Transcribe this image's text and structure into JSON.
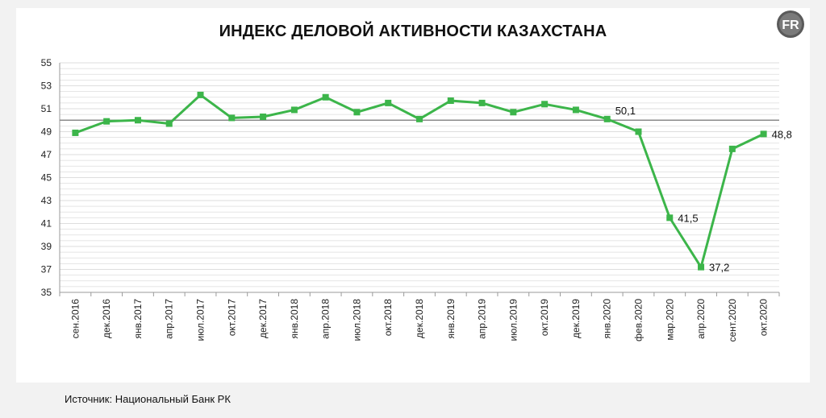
{
  "header": {
    "title": "ИНДЕКС ДЕЛОВОЙ АКТИВНОСТИ КАЗАХСТАНА",
    "logo_text": "FR"
  },
  "footer": {
    "source": "Источник: Национальный Банк РК"
  },
  "colors": {
    "series": "#3cb54a",
    "reference_line": "#8a8a8a",
    "grid": "#dedede",
    "background": "#f2f2f2",
    "panel": "#ffffff"
  },
  "chart_data": {
    "type": "line",
    "title": "ИНДЕКС ДЕЛОВОЙ АКТИВНОСТИ КАЗАХСТАНА",
    "xlabel": "",
    "ylabel": "",
    "ylim": [
      35,
      55
    ],
    "yticks": [
      35,
      37,
      39,
      41,
      43,
      45,
      47,
      49,
      51,
      53,
      55
    ],
    "grid": true,
    "reference_line": 50,
    "categories": [
      "сен.2016",
      "дек.2016",
      "янв.2017",
      "апр.2017",
      "июл.2017",
      "окт.2017",
      "дек.2017",
      "янв.2018",
      "апр.2018",
      "июл.2018",
      "окт.2018",
      "дек.2018",
      "янв.2019",
      "апр.2019",
      "июл.2019",
      "окт.2019",
      "дек.2019",
      "янв.2020",
      "фев.2020",
      "мар.2020",
      "апр.2020",
      "сент.2020",
      "окт.2020"
    ],
    "series": [
      {
        "name": "",
        "values": [
          48.9,
          49.9,
          50.0,
          49.7,
          52.2,
          50.2,
          50.3,
          50.9,
          52.0,
          50.7,
          51.5,
          50.1,
          51.7,
          51.5,
          50.7,
          51.4,
          50.9,
          50.1,
          49.0,
          41.5,
          37.2,
          47.5,
          48.8
        ]
      }
    ],
    "data_labels": [
      {
        "index": 17,
        "text": "50,1"
      },
      {
        "index": 19,
        "text": "41,5"
      },
      {
        "index": 20,
        "text": "37,2"
      },
      {
        "index": 22,
        "text": "48,8"
      }
    ]
  }
}
